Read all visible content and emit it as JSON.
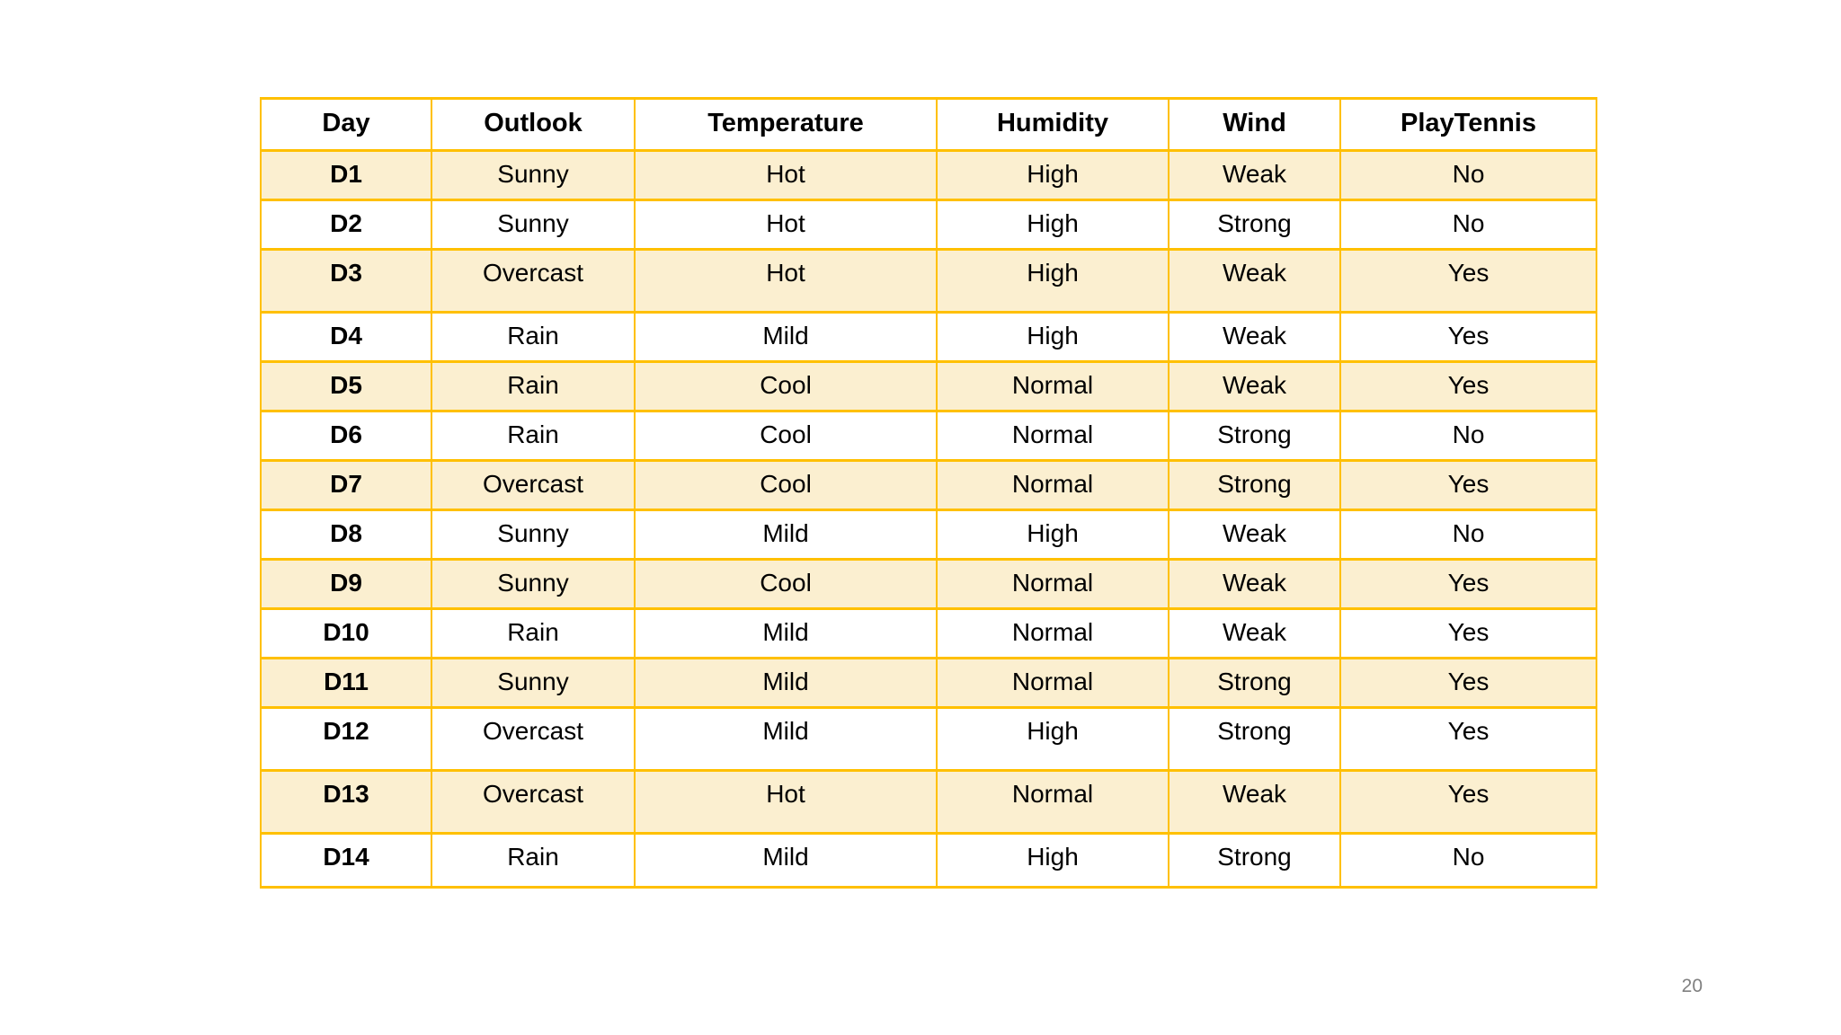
{
  "slide": {
    "page_number": "20"
  },
  "table": {
    "columns": [
      "Day",
      "Outlook",
      "Temperature",
      "Humidity",
      "Wind",
      "PlayTennis"
    ],
    "rows": [
      [
        "D1",
        "Sunny",
        "Hot",
        "High",
        "Weak",
        "No"
      ],
      [
        "D2",
        "Sunny",
        "Hot",
        "High",
        "Strong",
        "No"
      ],
      [
        "D3",
        "Overcast",
        "Hot",
        "High",
        "Weak",
        "Yes"
      ],
      [
        "D4",
        "Rain",
        "Mild",
        "High",
        "Weak",
        "Yes"
      ],
      [
        "D5",
        "Rain",
        "Cool",
        "Normal",
        "Weak",
        "Yes"
      ],
      [
        "D6",
        "Rain",
        "Cool",
        "Normal",
        "Strong",
        "No"
      ],
      [
        "D7",
        "Overcast",
        "Cool",
        "Normal",
        "Strong",
        "Yes"
      ],
      [
        "D8",
        "Sunny",
        "Mild",
        "High",
        "Weak",
        "No"
      ],
      [
        "D9",
        "Sunny",
        "Cool",
        "Normal",
        "Weak",
        "Yes"
      ],
      [
        "D10",
        "Rain",
        "Mild",
        "Normal",
        "Weak",
        "Yes"
      ],
      [
        "D11",
        "Sunny",
        "Mild",
        "Normal",
        "Strong",
        "Yes"
      ],
      [
        "D12",
        "Overcast",
        "Mild",
        "High",
        "Strong",
        "Yes"
      ],
      [
        "D13",
        "Overcast",
        "Hot",
        "Normal",
        "Weak",
        "Yes"
      ],
      [
        "D14",
        "Rain",
        "Mild",
        "High",
        "Strong",
        "No"
      ]
    ]
  },
  "colors": {
    "table_border": "#FFC000",
    "banded_row_fill": "#FBEFD0",
    "cell_text": "#000000",
    "page_number_text": "#808080"
  }
}
